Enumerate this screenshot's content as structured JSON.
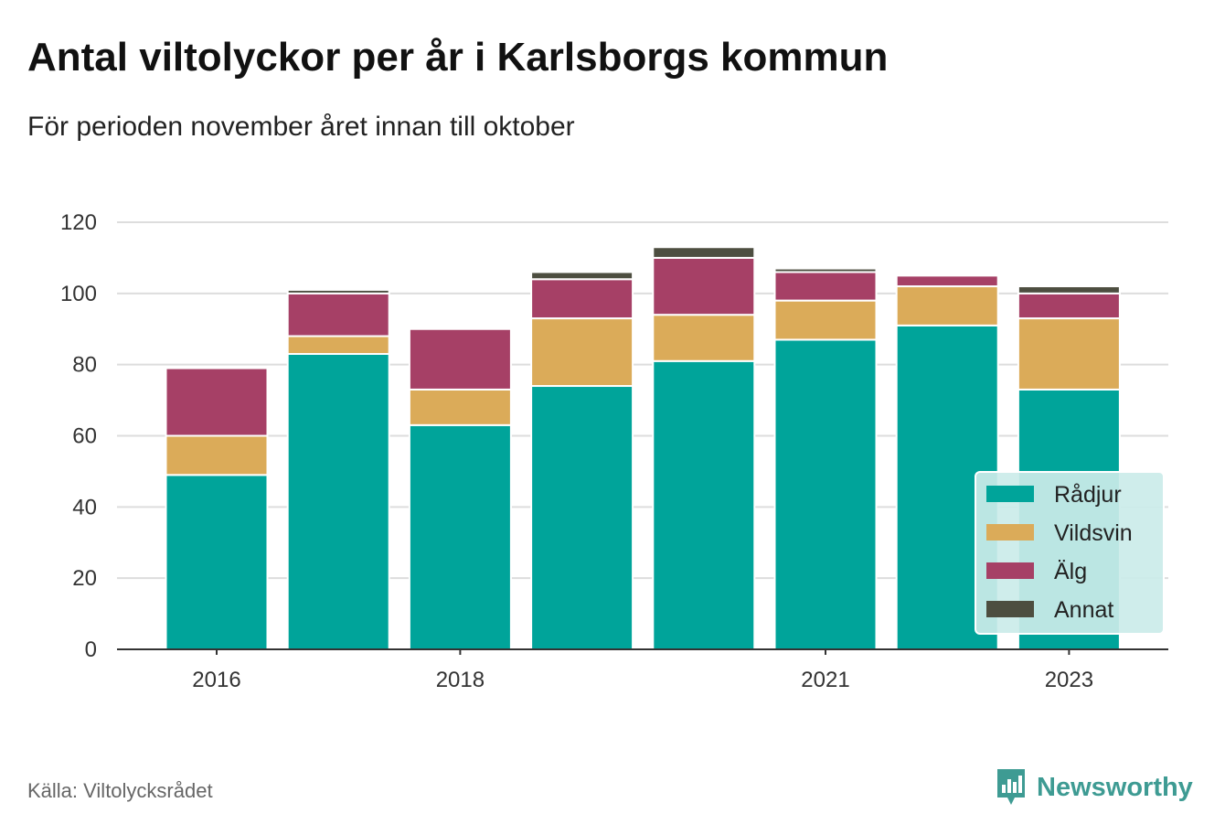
{
  "header": {
    "title": "Antal viltolyckor per år i Karlsborgs kommun",
    "subtitle": "För perioden november året innan till oktober"
  },
  "footer": {
    "source": "Källa: Viltolycksrådet",
    "brand": "Newsworthy",
    "brand_icon": "newsworthy-logo-icon"
  },
  "chart_data": {
    "type": "bar",
    "stacked": true,
    "categories": [
      "2016",
      "2017",
      "2018",
      "2019",
      "2020",
      "2021",
      "2022",
      "2023"
    ],
    "x_tick_labels": [
      "2016",
      "2018",
      "2021",
      "2023"
    ],
    "series": [
      {
        "name": "Rådjur",
        "color": "#00a49a",
        "values": [
          49,
          83,
          63,
          74,
          81,
          87,
          91,
          73
        ]
      },
      {
        "name": "Vildsvin",
        "color": "#dbab59",
        "values": [
          11,
          5,
          10,
          19,
          13,
          11,
          11,
          20
        ]
      },
      {
        "name": "Älg",
        "color": "#a64066",
        "values": [
          19,
          12,
          17,
          11,
          16,
          8,
          3,
          7
        ]
      },
      {
        "name": "Annat",
        "color": "#4d4e40",
        "values": [
          0,
          1,
          0,
          2,
          3,
          1,
          0,
          2
        ]
      }
    ],
    "ylim": [
      0,
      120
    ],
    "y_ticks": [
      0,
      20,
      40,
      60,
      80,
      100,
      120
    ],
    "grid": true,
    "legend_position": "bottom-right",
    "xlabel": "",
    "ylabel": ""
  }
}
